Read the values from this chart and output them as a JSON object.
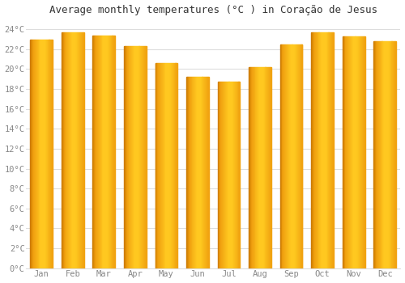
{
  "title": "Average monthly temperatures (°C ) in Coração de Jesus",
  "months": [
    "Jan",
    "Feb",
    "Mar",
    "Apr",
    "May",
    "Jun",
    "Jul",
    "Aug",
    "Sep",
    "Oct",
    "Nov",
    "Dec"
  ],
  "temperatures": [
    23.0,
    23.7,
    23.4,
    22.3,
    20.6,
    19.2,
    18.7,
    20.2,
    22.5,
    23.7,
    23.3,
    22.8
  ],
  "ylim": [
    0,
    25
  ],
  "yticks": [
    0,
    2,
    4,
    6,
    8,
    10,
    12,
    14,
    16,
    18,
    20,
    22,
    24
  ],
  "ytick_labels": [
    "0°C",
    "2°C",
    "4°C",
    "6°C",
    "8°C",
    "10°C",
    "12°C",
    "14°C",
    "16°C",
    "18°C",
    "20°C",
    "22°C",
    "24°C"
  ],
  "background_color": "#ffffff",
  "grid_color": "#dddddd",
  "title_fontsize": 9,
  "bar_left_color": "#E8920A",
  "bar_center_color": "#FFBE30",
  "bar_right_color": "#F5A020",
  "tick_label_color": "#888888",
  "title_color": "#333333"
}
